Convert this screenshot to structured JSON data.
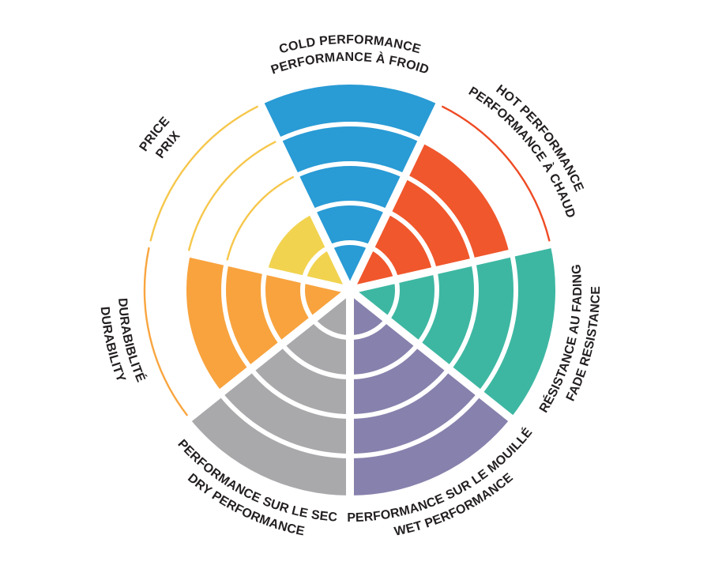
{
  "page": {
    "background_color": "#ffffff",
    "text_color": "#231f20"
  },
  "chart_data": {
    "type": "pie",
    "variant": "radial-rating-wheel",
    "description_visible_text_only": true,
    "rings": 5,
    "max_rating": 5,
    "start": "top",
    "direction": "clockwise",
    "grid": "white ring separators and white radial dividers",
    "legend_position": "labels curved around wheel, English outer line / French inner line",
    "categories": [
      {
        "key": "cold",
        "label_en": "COLD PERFORMANCE",
        "label_fr": "PERFORMANCE À FROID",
        "value": 5,
        "color": "#299BD5",
        "arc_color": "#299BD5"
      },
      {
        "key": "hot",
        "label_en": "HOT PERFORMANCE",
        "label_fr": "PERFORMANCE À CHAUD",
        "value": 4,
        "color": "#F0572C",
        "arc_color": "#EE4B24"
      },
      {
        "key": "fade",
        "label_en": "FADE RESISTANCE",
        "label_fr": "RÉSISTANCE AU FADING",
        "value": 5,
        "color": "#3DB7A2",
        "arc_color": "#3DB7A2"
      },
      {
        "key": "wet",
        "label_en": "WET PERFORMANCE",
        "label_fr": "PERFORMANCE SUR LE MOUILLÉ",
        "value": 5,
        "color": "#8781AD",
        "arc_color": "#8781AD"
      },
      {
        "key": "dry",
        "label_en": "DRY PERFORMANCE",
        "label_fr": "PERFORMANCE SUR LE SEC",
        "value": 5,
        "color": "#A9A9AC",
        "arc_color": "#A9A9AC"
      },
      {
        "key": "durability",
        "label_en": "DURABILITY",
        "label_fr": "DURABIBLITÉ",
        "value": 4,
        "color": "#F8A33E",
        "arc_color": "#F9A53F"
      },
      {
        "key": "price",
        "label_en": "PRICE",
        "label_fr": "PRIX",
        "value": 2,
        "color": "#F1D34F",
        "arc_color": "#F6C74B"
      }
    ]
  }
}
